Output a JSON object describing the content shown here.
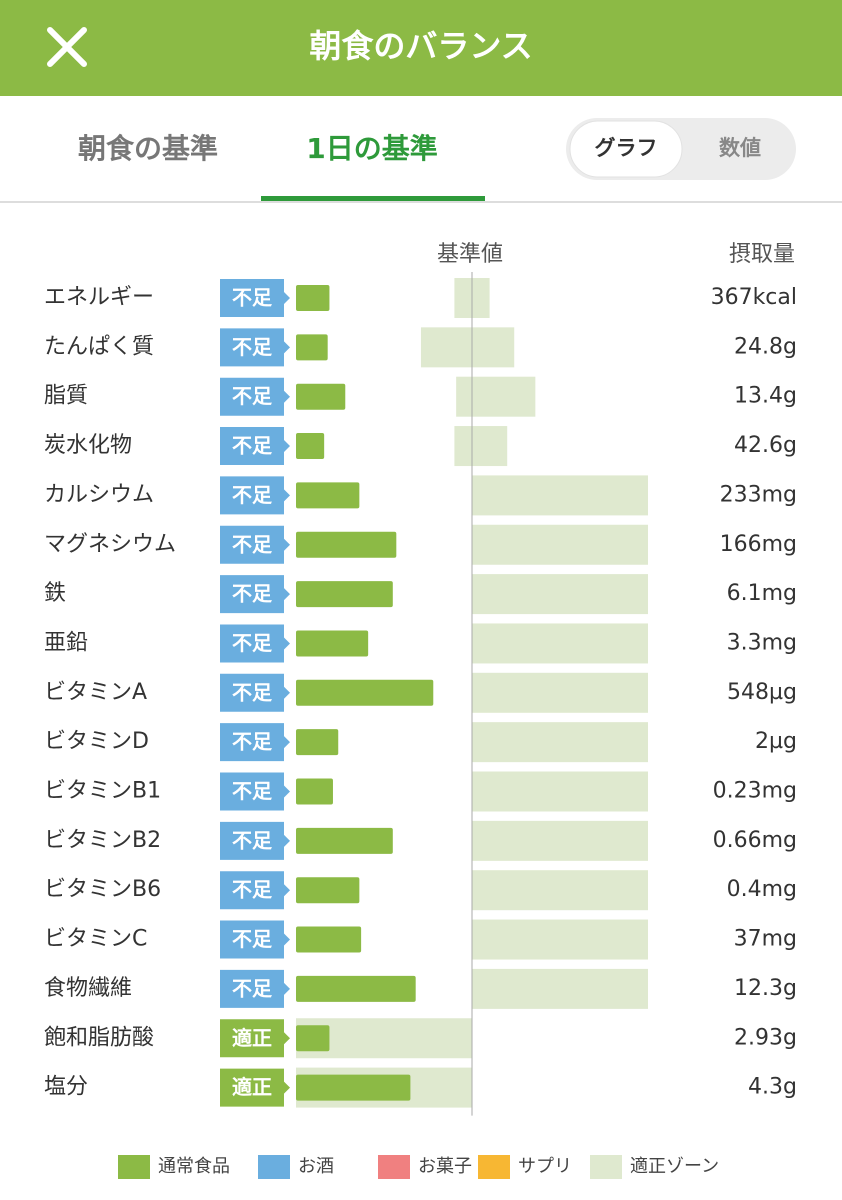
{
  "header": {
    "title": "朝食のバランス"
  },
  "tabs": [
    "朝食の基準",
    "1日の基準"
  ],
  "toggle": [
    "グラフ",
    "数値"
  ],
  "columns": {
    "reference": "基準値",
    "intake": "摂取量"
  },
  "reference": 100,
  "rows": [
    {
      "name": "エネルギー",
      "status": "不足",
      "value": "367kcal",
      "bar": 19,
      "zone": [
        90,
        110
      ]
    },
    {
      "name": "たんぱく質",
      "status": "不足",
      "value": "24.8g",
      "bar": 18,
      "zone": [
        71,
        124
      ]
    },
    {
      "name": "脂質",
      "status": "不足",
      "value": "13.4g",
      "bar": 28,
      "zone": [
        91,
        136
      ]
    },
    {
      "name": "炭水化物",
      "status": "不足",
      "value": "42.6g",
      "bar": 16,
      "zone": [
        90,
        120
      ]
    },
    {
      "name": "カルシウム",
      "status": "不足",
      "value": "233mg",
      "bar": 36,
      "zone": [
        100,
        200
      ]
    },
    {
      "name": "マグネシウム",
      "status": "不足",
      "value": "166mg",
      "bar": 57,
      "zone": [
        100,
        200
      ]
    },
    {
      "name": "鉄",
      "status": "不足",
      "value": "6.1mg",
      "bar": 55,
      "zone": [
        100,
        200
      ]
    },
    {
      "name": "亜鉛",
      "status": "不足",
      "value": "3.3mg",
      "bar": 41,
      "zone": [
        100,
        200
      ]
    },
    {
      "name": "ビタミンA",
      "status": "不足",
      "value": "548µg",
      "bar": 78,
      "zone": [
        100,
        200
      ]
    },
    {
      "name": "ビタミンD",
      "status": "不足",
      "value": "2µg",
      "bar": 24,
      "zone": [
        100,
        200
      ]
    },
    {
      "name": "ビタミンB1",
      "status": "不足",
      "value": "0.23mg",
      "bar": 21,
      "zone": [
        100,
        200
      ]
    },
    {
      "name": "ビタミンB2",
      "status": "不足",
      "value": "0.66mg",
      "bar": 55,
      "zone": [
        100,
        200
      ]
    },
    {
      "name": "ビタミンB6",
      "status": "不足",
      "value": "0.4mg",
      "bar": 36,
      "zone": [
        100,
        200
      ]
    },
    {
      "name": "ビタミンC",
      "status": "不足",
      "value": "37mg",
      "bar": 37,
      "zone": [
        100,
        200
      ]
    },
    {
      "name": "食物繊維",
      "status": "不足",
      "value": "12.3g",
      "bar": 68,
      "zone": [
        100,
        200
      ]
    },
    {
      "name": "飽和脂肪酸",
      "status": "適正",
      "value": "2.93g",
      "bar": 19,
      "zone": [
        0,
        100
      ]
    },
    {
      "name": "塩分",
      "status": "適正",
      "value": "4.3g",
      "bar": 65,
      "zone": [
        0,
        100
      ]
    }
  ],
  "legend": [
    {
      "label": "通常食品",
      "color": "#8cba45"
    },
    {
      "label": "お酒",
      "color": "#6aaedf"
    },
    {
      "label": "お菓子",
      "color": "#f08080"
    },
    {
      "label": "サプリ",
      "color": "#f7b733"
    },
    {
      "label": "適正ゾーン",
      "color": "#dfe9cf"
    }
  ]
}
